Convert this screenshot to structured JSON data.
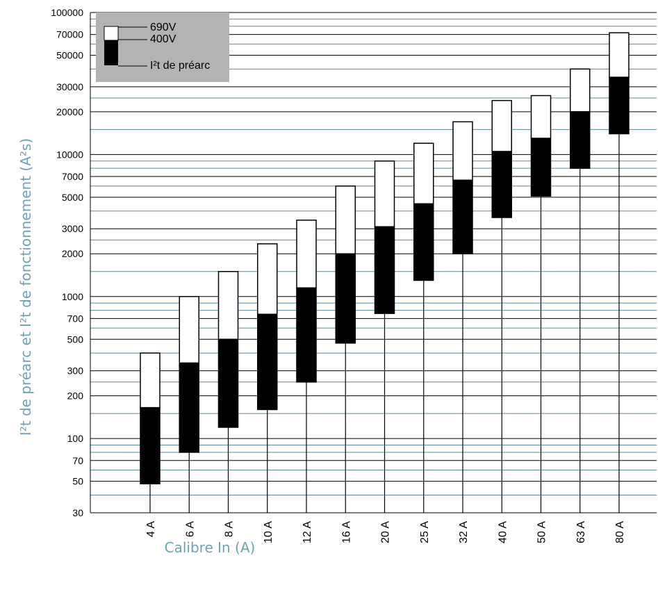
{
  "chart_data": {
    "type": "bar",
    "subtype": "floating-stacked-range",
    "log_scale_y": true,
    "ylim": [
      30,
      100000
    ],
    "grid": true,
    "legend_position": "top-left",
    "ylabel": "I²t de préarc et I²t de fonctionnement (A²s)",
    "xlabel": "Calibre In (A)",
    "y_tick_labels": [
      "30",
      "50",
      "70",
      "100",
      "200",
      "300",
      "500",
      "700",
      "1000",
      "2000",
      "3000",
      "5000",
      "7000",
      "10000",
      "20000",
      "30000",
      "50000",
      "70000",
      "100000"
    ],
    "categories": [
      "4 A",
      "6 A",
      "8 A",
      "10 A",
      "12 A",
      "16 A",
      "20 A",
      "25 A",
      "32 A",
      "40 A",
      "50 A",
      "63 A",
      "80 A"
    ],
    "series": [
      {
        "name": "I²t de préarc",
        "color": "#000000",
        "values": [
          48,
          80,
          120,
          160,
          250,
          470,
          760,
          1300,
          2000,
          3600,
          5100,
          8000,
          14000
        ]
      },
      {
        "name": "400V",
        "color": "#000000",
        "values": [
          165,
          340,
          500,
          750,
          1150,
          2000,
          3100,
          4500,
          6600,
          10500,
          13000,
          20000,
          35000
        ]
      },
      {
        "name": "690V",
        "color": "#ffffff",
        "values": [
          400,
          1000,
          1500,
          2350,
          3450,
          6000,
          9000,
          12000,
          17000,
          24000,
          26000,
          40000,
          72000
        ]
      }
    ],
    "colors": {
      "grid": "#000000",
      "minor_grid": "#5a8a96",
      "axis_title": "#6ea3b3",
      "legend_bg": "#b3b3b3"
    }
  },
  "legend": {
    "items": [
      {
        "label": "690V"
      },
      {
        "label": "400V"
      },
      {
        "label": "I²t de préarc"
      }
    ]
  }
}
